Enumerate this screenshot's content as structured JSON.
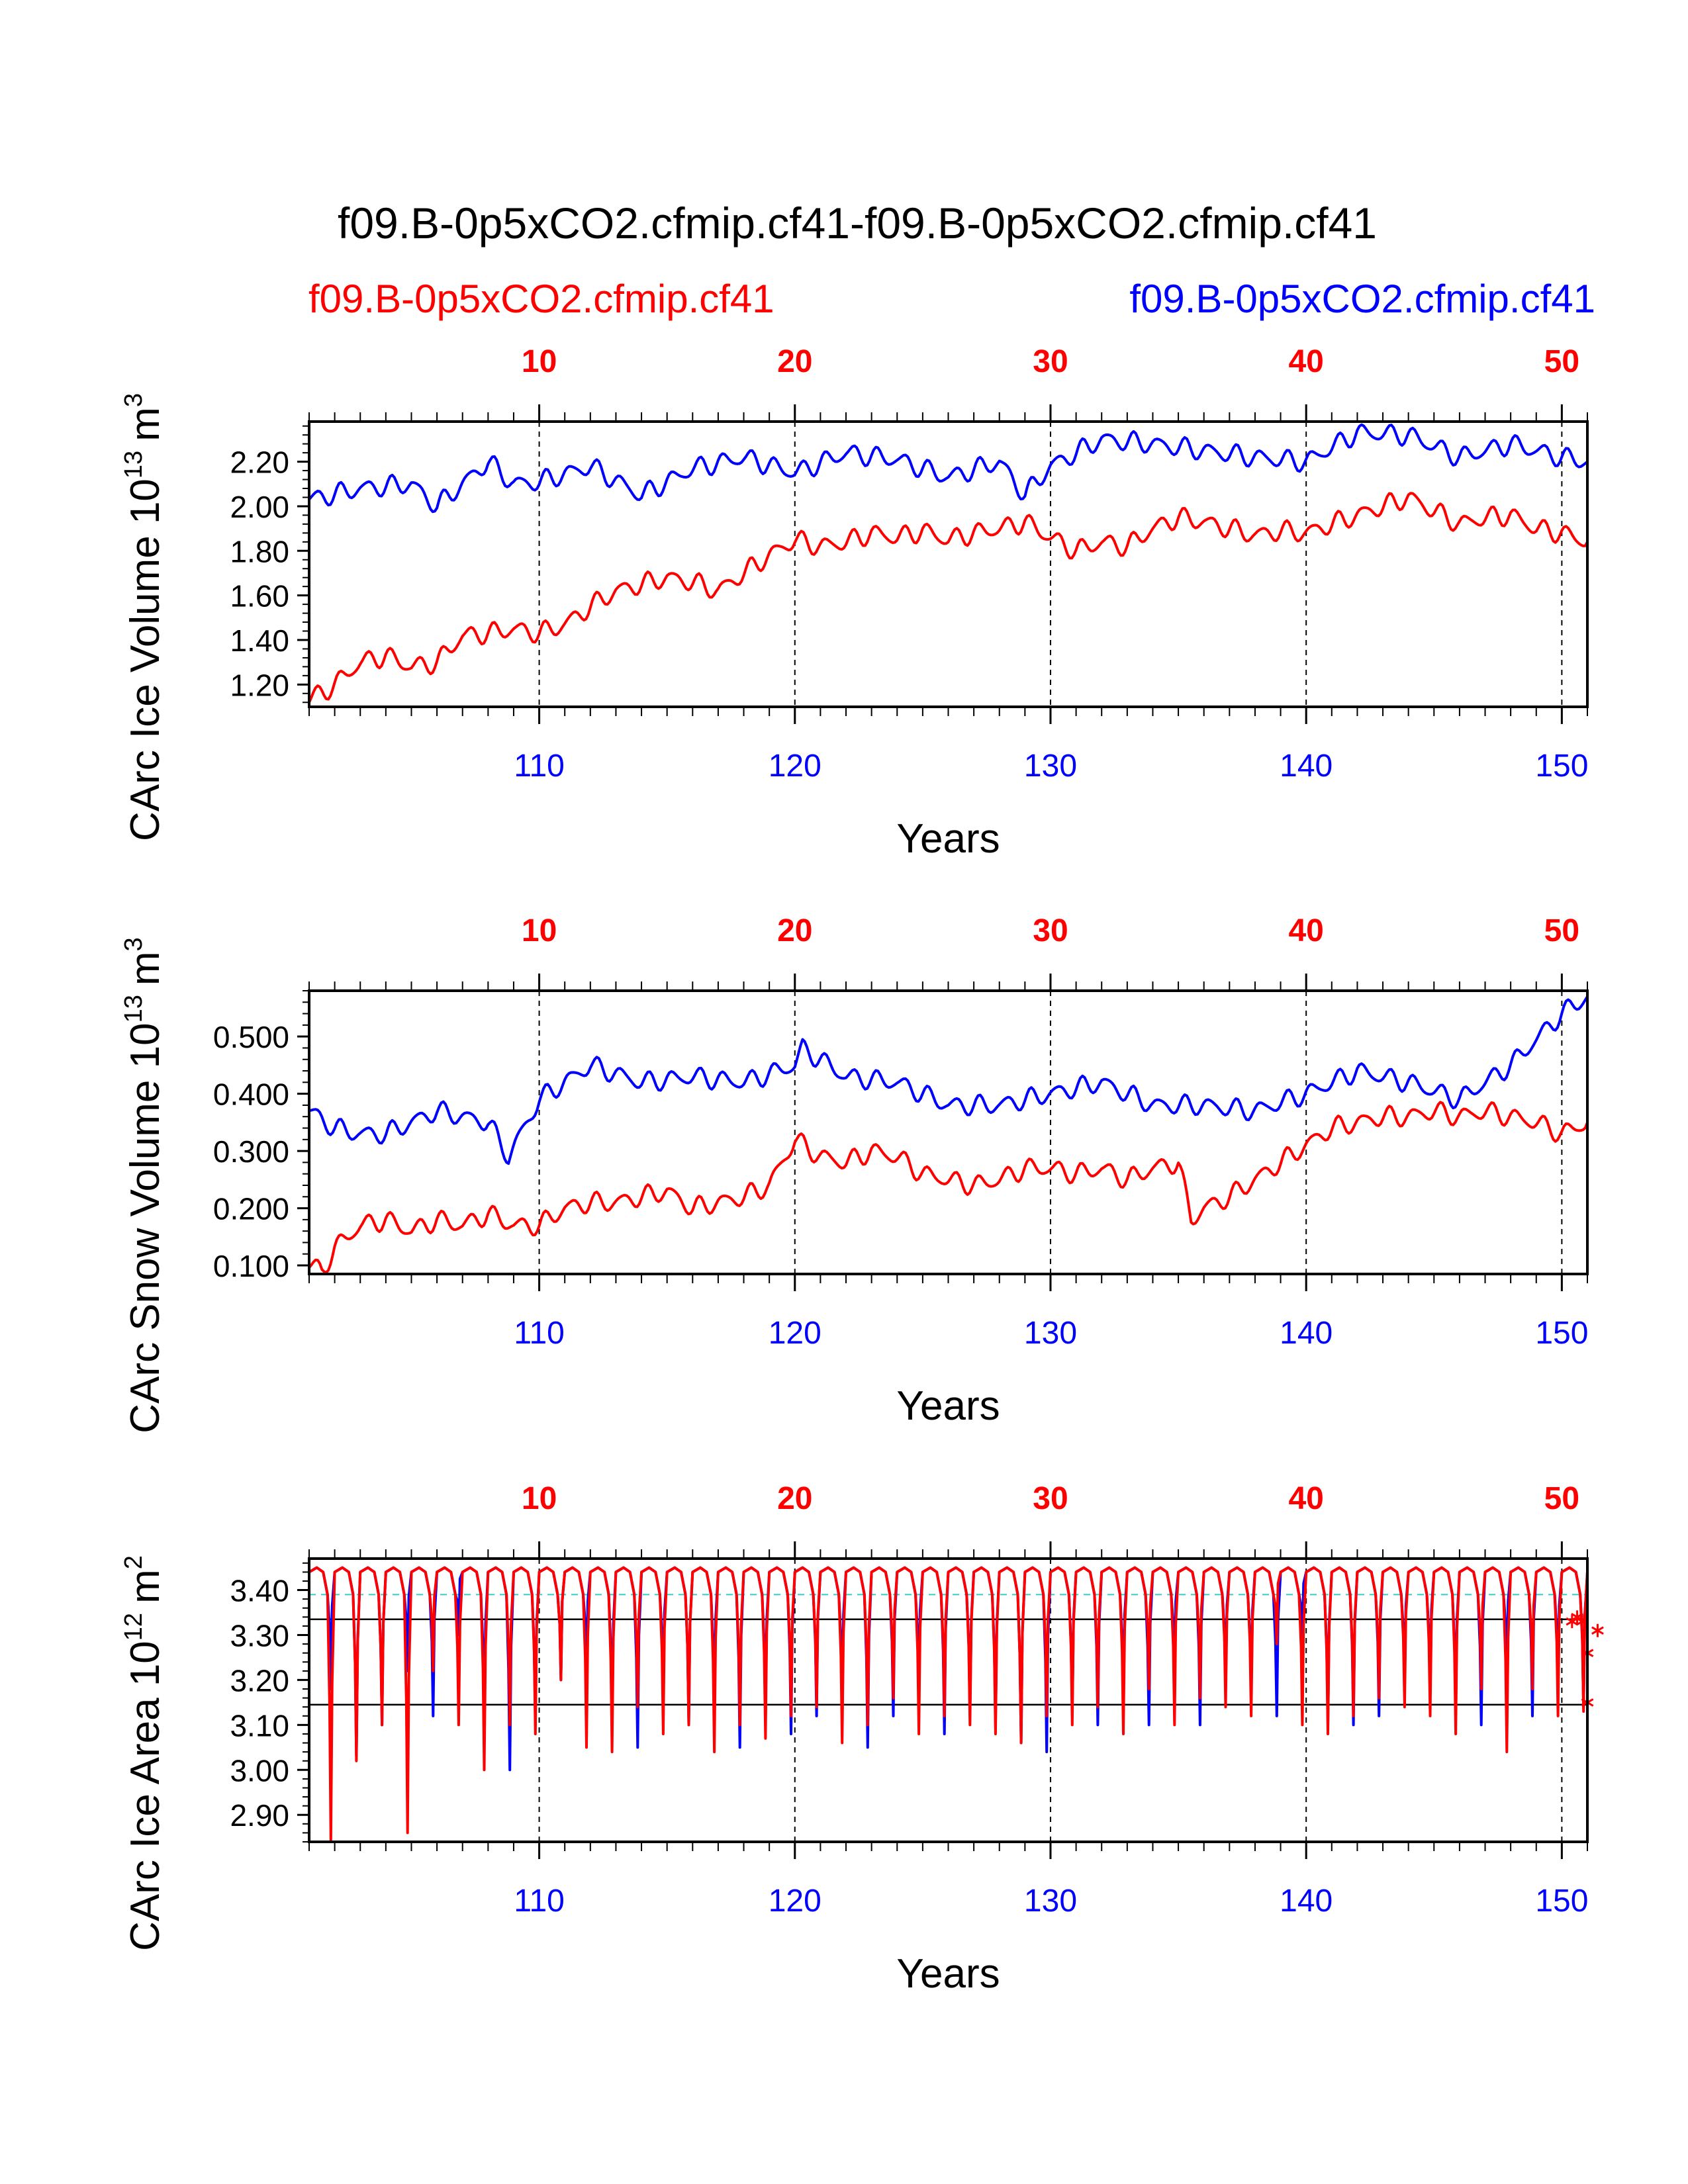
{
  "figure": {
    "title": "f09.B-0p5xCO2.cfmip.cf41-f09.B-0p5xCO2.cfmip.cf41"
  },
  "legend": {
    "red_case": "f09.B-0p5xCO2.cfmip.cf41",
    "blue_case": "f09.B-0p5xCO2.cfmip.cf41"
  },
  "colors": {
    "red": "#ff0000",
    "blue": "#0000ff",
    "cyan": "#33cccc",
    "black": "#000000"
  },
  "chart_data": [
    {
      "type": "line",
      "ylabel": "CArc Ice Volume",
      "yunit_exp": "13",
      "yunit_base": "m",
      "yunit_pow": "3",
      "xlabel": "Years",
      "ylim": [
        1.1,
        2.38
      ],
      "yticks": [
        "1.20",
        "1.40",
        "1.60",
        "1.80",
        "2.00",
        "2.20"
      ],
      "yticks_values": [
        1.2,
        1.4,
        1.6,
        1.8,
        2.0,
        2.2
      ],
      "bottom_axis_label": [
        "110",
        "120",
        "130",
        "140",
        "150"
      ],
      "top_axis_label": [
        "10",
        "20",
        "30",
        "40",
        "50"
      ],
      "xlim_years": [
        101,
        151
      ],
      "series": [
        {
          "name": "blue case",
          "color": "blue",
          "x": [
            101,
            103,
            105,
            106,
            108,
            109,
            110,
            112,
            114,
            116,
            118,
            120,
            122,
            124,
            126,
            128,
            129,
            130,
            132,
            134,
            136,
            138,
            140,
            142,
            144,
            146,
            148,
            150,
            151
          ],
          "values": [
            2.03,
            2.08,
            2.1,
            2.0,
            2.2,
            2.1,
            2.11,
            2.18,
            2.05,
            2.17,
            2.22,
            2.15,
            2.24,
            2.21,
            2.13,
            2.2,
            2.05,
            2.18,
            2.3,
            2.28,
            2.25,
            2.22,
            2.2,
            2.33,
            2.32,
            2.22,
            2.28,
            2.22,
            2.2
          ]
        },
        {
          "name": "red case",
          "color": "red",
          "x": [
            101,
            102,
            103,
            104,
            105,
            106,
            107,
            108,
            109,
            110,
            111,
            112,
            113,
            114,
            115,
            116,
            117,
            118,
            119,
            120,
            121,
            122,
            123,
            124,
            125,
            126,
            127,
            128,
            129,
            130,
            131,
            132,
            133,
            134,
            135,
            136,
            137,
            138,
            139,
            140,
            141,
            142,
            143,
            144,
            145,
            146,
            147,
            148,
            149,
            150,
            151
          ],
          "values": [
            1.13,
            1.2,
            1.3,
            1.33,
            1.28,
            1.3,
            1.42,
            1.43,
            1.45,
            1.43,
            1.47,
            1.55,
            1.62,
            1.65,
            1.68,
            1.66,
            1.62,
            1.7,
            1.78,
            1.85,
            1.82,
            1.84,
            1.88,
            1.86,
            1.89,
            1.85,
            1.88,
            1.9,
            1.93,
            1.86,
            1.8,
            1.84,
            1.82,
            1.9,
            1.95,
            1.93,
            1.9,
            1.87,
            1.89,
            1.88,
            1.92,
            1.96,
            2.0,
            2.04,
            1.98,
            1.92,
            1.95,
            1.96,
            1.9,
            1.88,
            1.84
          ]
        }
      ]
    },
    {
      "type": "line",
      "ylabel": "CArc Snow Volume",
      "yunit_exp": "13",
      "yunit_base": "m",
      "yunit_pow": "3",
      "xlabel": "Years",
      "ylim": [
        0.085,
        0.58
      ],
      "yticks": [
        "0.100",
        "0.200",
        "0.300",
        "0.400",
        "0.500"
      ],
      "yticks_values": [
        0.1,
        0.2,
        0.3,
        0.4,
        0.5
      ],
      "bottom_axis_label": [
        "110",
        "120",
        "130",
        "140",
        "150"
      ],
      "top_axis_label": [
        "10",
        "20",
        "30",
        "40",
        "50"
      ],
      "xlim_years": [
        101,
        151
      ],
      "series": [
        {
          "name": "blue case",
          "color": "blue",
          "x": [
            101,
            102,
            103,
            104,
            105,
            106,
            107,
            108,
            108.8,
            110,
            112,
            114,
            116,
            118,
            120,
            120.3,
            122,
            124,
            126,
            128,
            130,
            132,
            134,
            136,
            138,
            140,
            142,
            144,
            146,
            148,
            150,
            151
          ],
          "values": [
            0.37,
            0.34,
            0.33,
            0.33,
            0.35,
            0.37,
            0.36,
            0.35,
            0.29,
            0.39,
            0.45,
            0.42,
            0.43,
            0.42,
            0.45,
            0.48,
            0.43,
            0.42,
            0.38,
            0.38,
            0.4,
            0.42,
            0.38,
            0.38,
            0.37,
            0.4,
            0.44,
            0.42,
            0.39,
            0.45,
            0.54,
            0.57
          ]
        },
        {
          "name": "red case",
          "color": "red",
          "x": [
            101,
            101.5,
            102,
            103,
            104,
            105,
            106,
            107,
            108,
            109,
            110,
            111,
            112,
            113,
            114,
            115,
            116,
            117,
            118,
            119,
            120,
            121,
            122,
            123,
            124,
            125,
            126,
            127,
            128,
            129,
            130,
            131,
            132,
            133,
            134,
            135,
            135.5,
            136,
            137,
            138,
            139,
            140,
            141,
            142,
            143,
            144,
            145,
            146,
            147,
            148,
            149,
            150,
            151
          ],
          "values": [
            0.1,
            0.09,
            0.13,
            0.17,
            0.18,
            0.16,
            0.18,
            0.17,
            0.19,
            0.17,
            0.17,
            0.2,
            0.21,
            0.21,
            0.22,
            0.23,
            0.2,
            0.21,
            0.22,
            0.24,
            0.32,
            0.29,
            0.28,
            0.3,
            0.29,
            0.26,
            0.25,
            0.24,
            0.25,
            0.27,
            0.27,
            0.26,
            0.27,
            0.25,
            0.27,
            0.28,
            0.18,
            0.2,
            0.22,
            0.25,
            0.28,
            0.31,
            0.34,
            0.35,
            0.36,
            0.36,
            0.37,
            0.36,
            0.37,
            0.36,
            0.35,
            0.33,
            0.35
          ]
        }
      ]
    },
    {
      "type": "line",
      "ylabel": "CArc Ice Area",
      "yunit_exp": "12",
      "yunit_base": "m",
      "yunit_pow": "2",
      "xlabel": "Years",
      "ylim": [
        2.84,
        3.47
      ],
      "yticks": [
        "2.90",
        "3.00",
        "3.10",
        "3.20",
        "3.30",
        "3.40"
      ],
      "yticks_values": [
        2.9,
        3.0,
        3.1,
        3.2,
        3.3,
        3.4
      ],
      "bottom_axis_label": [
        "110",
        "120",
        "130",
        "140",
        "150"
      ],
      "top_axis_label": [
        "10",
        "20",
        "30",
        "40",
        "50"
      ],
      "xlim_years": [
        101,
        151
      ],
      "reference_lines": {
        "upper": 3.335,
        "lower": 3.145,
        "cyan": 3.39
      },
      "seasonal_max": 3.45,
      "blue_minima": [
        3.18,
        3.03,
        3.1,
        3.22,
        3.12,
        3.3,
        3.1,
        3.0,
        3.1,
        3.2,
        3.2,
        3.1,
        3.05,
        3.15,
        3.1,
        3.12,
        3.05,
        3.12,
        3.08,
        3.12,
        3.14,
        3.05,
        3.12,
        3.16,
        3.08,
        3.12,
        3.1,
        3.06,
        3.04,
        3.12,
        3.1,
        3.14,
        3.1,
        3.2,
        3.1,
        3.18,
        3.16,
        3.12,
        3.28,
        3.1,
        3.1,
        3.12,
        3.18,
        3.16,
        3.12,
        3.1,
        3.2,
        3.12,
        3.18,
        3.14
      ],
      "red_minima": [
        2.84,
        3.02,
        3.1,
        2.86,
        3.22,
        3.1,
        3.0,
        3.1,
        3.08,
        3.2,
        3.05,
        3.04,
        3.14,
        3.08,
        3.1,
        3.04,
        3.1,
        3.07,
        3.12,
        3.14,
        3.06,
        3.1,
        3.16,
        3.08,
        3.12,
        3.1,
        3.08,
        3.06,
        3.12,
        3.1,
        3.14,
        3.08,
        3.18,
        3.1,
        3.16,
        3.14,
        3.12,
        3.28,
        3.1,
        3.08,
        3.12,
        3.16,
        3.14,
        3.12,
        3.08,
        3.18,
        3.04,
        3.18,
        3.12,
        3.13
      ],
      "markers": [
        {
          "x": 150.4,
          "y": 3.33
        },
        {
          "x": 150.6,
          "y": 3.34
        },
        {
          "x": 150.8,
          "y": 3.33
        },
        {
          "x": 151.0,
          "y": 3.26
        },
        {
          "x": 151.0,
          "y": 3.15
        },
        {
          "x": 151.4,
          "y": 3.31
        }
      ]
    }
  ]
}
